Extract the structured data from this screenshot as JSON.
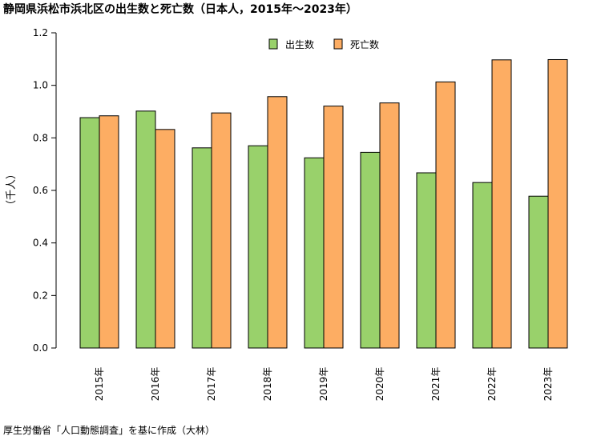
{
  "title": "静岡県浜松市浜北区の出生数と死亡数（日本人，2015年～2023年）",
  "source": "厚生労働省「人口動態調査」を基に作成（大林）",
  "chart_data": {
    "type": "bar",
    "title": "静岡県浜松市浜北区の出生数と死亡数（日本人，2015年～2023年）",
    "xlabel": "",
    "ylabel": "（千人）",
    "ylim": [
      0,
      1.2
    ],
    "yticks": [
      "0.0",
      "0.2",
      "0.4",
      "0.6",
      "0.8",
      "1.0",
      "1.2"
    ],
    "categories": [
      "2015年",
      "2016年",
      "2017年",
      "2018年",
      "2019年",
      "2020年",
      "2021年",
      "2022年",
      "2023年"
    ],
    "series": [
      {
        "name": "出生数",
        "color": "#99d16b",
        "values": [
          0.877,
          0.902,
          0.762,
          0.77,
          0.724,
          0.745,
          0.667,
          0.63,
          0.578
        ]
      },
      {
        "name": "死亡数",
        "color": "#fdad63",
        "values": [
          0.884,
          0.832,
          0.895,
          0.957,
          0.921,
          0.933,
          1.013,
          1.097,
          1.098
        ]
      }
    ],
    "legend": "top-center",
    "grid": false
  }
}
